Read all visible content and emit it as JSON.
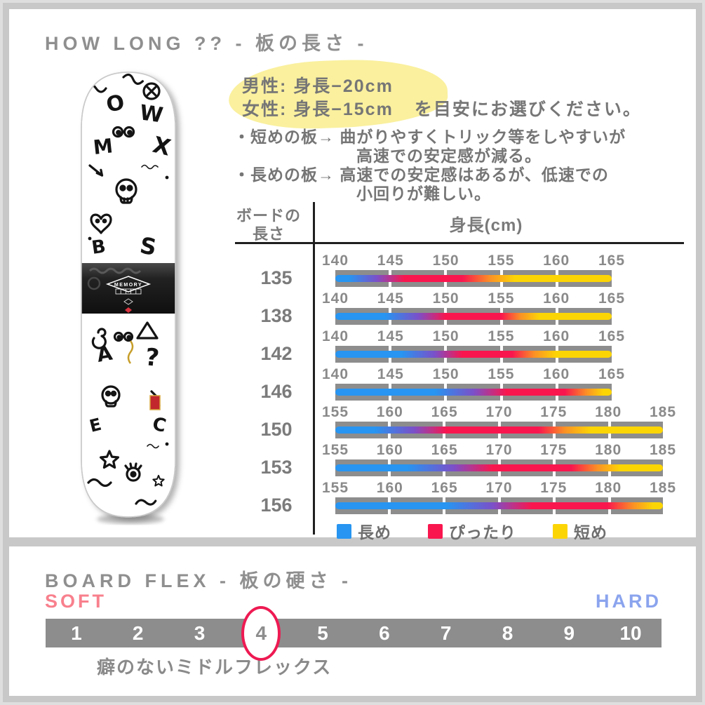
{
  "colors": {
    "page_bg": "#c8c8c8",
    "panel_bg": "#ffffff",
    "title_gray": "#8f8f8f",
    "text_gray": "#757575",
    "bar_gray": "#8d8d8d",
    "line_black": "#1f1f1f",
    "highlight_yellow": "#faf09e",
    "blue": "#2795f1",
    "purple": "#7b50c9",
    "red": "#f9164e",
    "orange": "#fb9125",
    "yellow": "#fcd505",
    "soft_pink": "#f8808d",
    "hard_blue": "#8ba4ee",
    "circle_red": "#ee1a52"
  },
  "board": {
    "logo_text": "MEMORY"
  },
  "how_long": {
    "title": "HOW LONG ?? - 板の長さ -",
    "guide": {
      "male": "男性: 身長−20cm",
      "female": "女性: 身長−15cm",
      "suffix": "を目安にお選びください。"
    },
    "bullets": [
      "・短めの板→ 曲がりやすくトリック等をしやすいが",
      "高速での安定感が減る。",
      "・長めの板→ 高速での安定感はあるが、低速での",
      "小回りが難しい。"
    ],
    "table": {
      "row_header_line1": "ボードの",
      "row_header_line2": "長さ",
      "col_header": "身長(cm)"
    }
  },
  "chart_data": [
    {
      "type": "heatmap",
      "title": "身長(cm)",
      "row_axis": "ボードの長さ",
      "legend": [
        {
          "label": "長め",
          "color_key": "blue"
        },
        {
          "label": "ぴったり",
          "color_key": "red"
        },
        {
          "label": "短め",
          "color_key": "yellow"
        }
      ],
      "rows": [
        {
          "board_length": "135",
          "ticks": [
            "140",
            "145",
            "150",
            "155",
            "160",
            "165"
          ],
          "perfect_fit_range": [
            146,
            152
          ],
          "stops": [
            [
              0,
              "blue"
            ],
            [
              5,
              "blue"
            ],
            [
              15,
              "purple"
            ],
            [
              25,
              "red"
            ],
            [
              46,
              "red"
            ],
            [
              56,
              "orange"
            ],
            [
              65,
              "yellow"
            ],
            [
              100,
              "yellow"
            ]
          ]
        },
        {
          "board_length": "138",
          "ticks": [
            "140",
            "145",
            "150",
            "155",
            "160",
            "165"
          ],
          "perfect_fit_range": [
            149,
            155
          ],
          "stops": [
            [
              0,
              "blue"
            ],
            [
              18,
              "blue"
            ],
            [
              30,
              "purple"
            ],
            [
              40,
              "red"
            ],
            [
              60,
              "red"
            ],
            [
              67,
              "orange"
            ],
            [
              74,
              "yellow"
            ],
            [
              100,
              "yellow"
            ]
          ]
        },
        {
          "board_length": "142",
          "ticks": [
            "140",
            "145",
            "150",
            "155",
            "160",
            "165"
          ],
          "perfect_fit_range": [
            151,
            156
          ],
          "stops": [
            [
              0,
              "blue"
            ],
            [
              24,
              "blue"
            ],
            [
              36,
              "purple"
            ],
            [
              46,
              "red"
            ],
            [
              64,
              "red"
            ],
            [
              72,
              "orange"
            ],
            [
              80,
              "yellow"
            ],
            [
              100,
              "yellow"
            ]
          ]
        },
        {
          "board_length": "146",
          "ticks": [
            "140",
            "145",
            "150",
            "155",
            "160",
            "165"
          ],
          "perfect_fit_range": [
            156,
            162
          ],
          "stops": [
            [
              0,
              "blue"
            ],
            [
              36,
              "blue"
            ],
            [
              50,
              "purple"
            ],
            [
              62,
              "red"
            ],
            [
              83,
              "red"
            ],
            [
              91,
              "orange"
            ],
            [
              97,
              "yellow"
            ],
            [
              100,
              "yellow"
            ]
          ]
        },
        {
          "board_length": "150",
          "ticks": [
            "155",
            "160",
            "165",
            "170",
            "175",
            "180",
            "185"
          ],
          "perfect_fit_range": [
            165,
            174
          ],
          "stops": [
            [
              0,
              "blue"
            ],
            [
              12,
              "blue"
            ],
            [
              24,
              "purple"
            ],
            [
              34,
              "red"
            ],
            [
              62,
              "red"
            ],
            [
              70,
              "orange"
            ],
            [
              78,
              "yellow"
            ],
            [
              100,
              "yellow"
            ]
          ]
        },
        {
          "board_length": "153",
          "ticks": [
            "155",
            "160",
            "165",
            "170",
            "175",
            "180",
            "185"
          ],
          "perfect_fit_range": [
            170,
            177
          ],
          "stops": [
            [
              0,
              "blue"
            ],
            [
              22,
              "blue"
            ],
            [
              36,
              "purple"
            ],
            [
              48,
              "red"
            ],
            [
              72,
              "red"
            ],
            [
              80,
              "orange"
            ],
            [
              87,
              "yellow"
            ],
            [
              100,
              "yellow"
            ]
          ]
        },
        {
          "board_length": "156",
          "ticks": [
            "155",
            "160",
            "165",
            "170",
            "175",
            "180",
            "185"
          ],
          "perfect_fit_range": [
            173,
            180
          ],
          "stops": [
            [
              0,
              "blue"
            ],
            [
              34,
              "blue"
            ],
            [
              48,
              "purple"
            ],
            [
              60,
              "red"
            ],
            [
              83,
              "red"
            ],
            [
              91,
              "orange"
            ],
            [
              97,
              "yellow"
            ],
            [
              100,
              "yellow"
            ]
          ]
        }
      ]
    },
    {
      "type": "scale",
      "title": "BOARD FLEX - 板の硬さ -",
      "min_label": "SOFT",
      "max_label": "HARD",
      "values": [
        "1",
        "2",
        "3",
        "4",
        "5",
        "6",
        "7",
        "8",
        "9",
        "10"
      ],
      "selected": "4",
      "caption": "癖のないミドルフレックス"
    }
  ]
}
